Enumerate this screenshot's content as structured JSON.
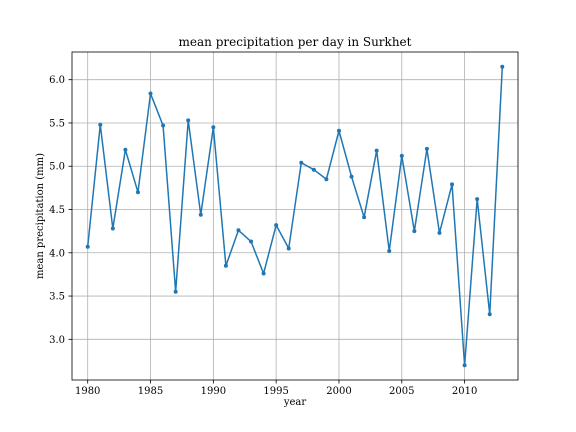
{
  "chart_data": {
    "type": "line",
    "title": "mean precipitation per day in Surkhet",
    "xlabel": "year",
    "ylabel": "mean precipitation (mm)",
    "xlim": [
      1978.75,
      2014.25
    ],
    "ylim": [
      2.53,
      6.32
    ],
    "xticks": [
      1980,
      1985,
      1990,
      1995,
      2000,
      2005,
      2010
    ],
    "yticks": [
      3.0,
      3.5,
      4.0,
      4.5,
      5.0,
      5.5,
      6.0
    ],
    "ytick_labels": [
      "3.0",
      "3.5",
      "4.0",
      "4.5",
      "5.0",
      "5.5",
      "6.0"
    ],
    "grid": true,
    "series_color": "#1f77b4",
    "x": [
      1980,
      1981,
      1982,
      1983,
      1984,
      1985,
      1986,
      1987,
      1988,
      1989,
      1990,
      1991,
      1992,
      1993,
      1994,
      1995,
      1996,
      1997,
      1998,
      1999,
      2000,
      2001,
      2002,
      2003,
      2004,
      2005,
      2006,
      2007,
      2008,
      2009,
      2010,
      2011,
      2012,
      2013
    ],
    "y": [
      4.07,
      5.48,
      4.28,
      5.19,
      4.7,
      5.84,
      5.47,
      3.55,
      5.53,
      4.44,
      5.45,
      3.85,
      4.26,
      4.13,
      3.76,
      4.32,
      4.05,
      5.04,
      4.96,
      4.85,
      5.41,
      4.88,
      4.41,
      5.18,
      4.02,
      5.12,
      4.25,
      5.2,
      4.23,
      4.79,
      2.7,
      4.62,
      3.29,
      6.15
    ]
  }
}
